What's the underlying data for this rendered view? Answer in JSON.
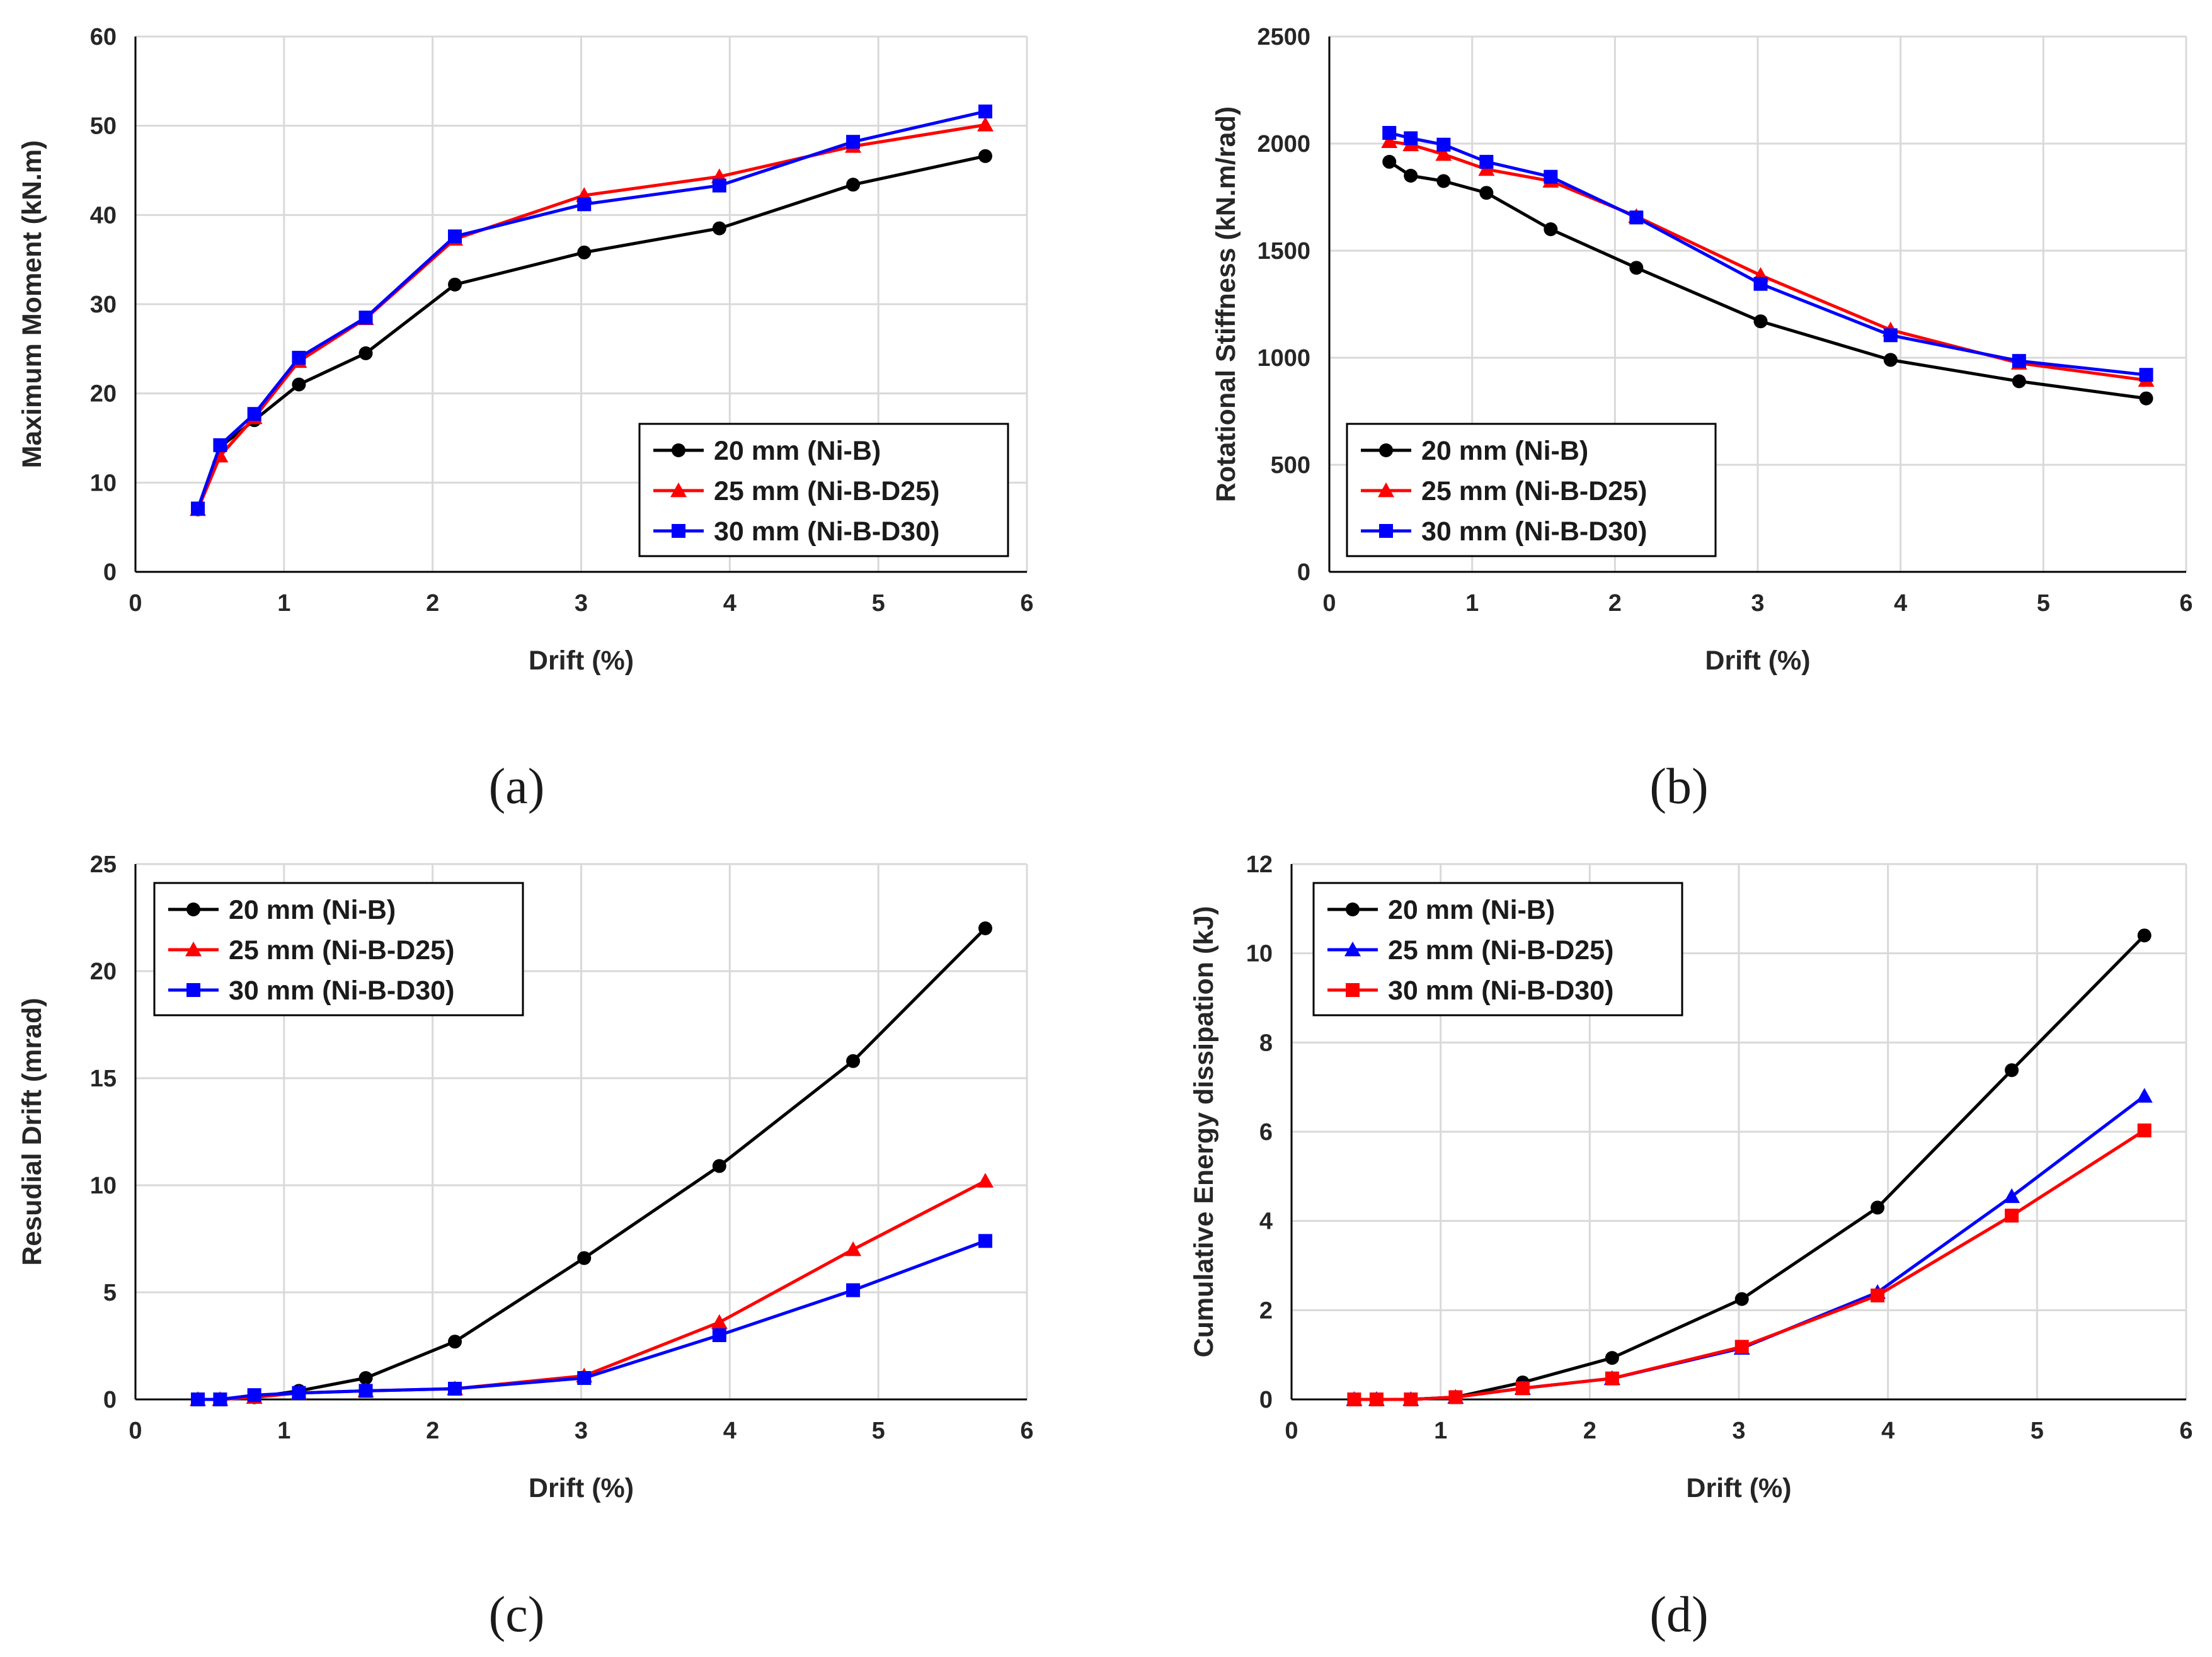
{
  "chart_data": [
    {
      "type": "line",
      "panel_label": "(a)",
      "xlabel": "Drift (%)",
      "ylabel": "Maximum Moment (kN.m)",
      "xlim": [
        0,
        6
      ],
      "ylim": [
        0,
        60
      ],
      "xticks": [
        0,
        1,
        2,
        3,
        4,
        5,
        6
      ],
      "yticks": [
        0,
        10,
        20,
        30,
        40,
        50,
        60
      ],
      "grid": true,
      "legend_position": "bottom-right",
      "series": [
        {
          "name": "20 mm (Ni-B)",
          "color": "#000000",
          "marker": "circle",
          "x": [
            0.42,
            0.57,
            0.8,
            1.1,
            1.55,
            2.15,
            3.02,
            3.93,
            4.83,
            5.72
          ],
          "y": [
            7.0,
            14.0,
            17.0,
            21.0,
            24.5,
            32.2,
            35.8,
            38.5,
            43.4,
            46.6
          ]
        },
        {
          "name": "25 mm (Ni-B-D25)",
          "color": "#ff0000",
          "marker": "triangle",
          "x": [
            0.42,
            0.57,
            0.8,
            1.1,
            1.55,
            2.15,
            3.02,
            3.93,
            4.83,
            5.72
          ],
          "y": [
            7.0,
            13.0,
            17.3,
            23.6,
            28.4,
            37.3,
            42.2,
            44.3,
            47.7,
            50.1
          ]
        },
        {
          "name": "30 mm (Ni-B-D30)",
          "color": "#0000ff",
          "marker": "square",
          "x": [
            0.42,
            0.57,
            0.8,
            1.1,
            1.55,
            2.15,
            3.02,
            3.93,
            4.83,
            5.72
          ],
          "y": [
            7.1,
            14.2,
            17.7,
            24.0,
            28.5,
            37.6,
            41.2,
            43.3,
            48.2,
            51.6
          ]
        }
      ]
    },
    {
      "type": "line",
      "panel_label": "(b)",
      "xlabel": "Drift (%)",
      "ylabel": "Rotational Stiffness (kN.m/rad)",
      "xlim": [
        0,
        6
      ],
      "ylim": [
        0,
        2500
      ],
      "xticks": [
        0,
        1,
        2,
        3,
        4,
        5,
        6
      ],
      "yticks": [
        0,
        500,
        1000,
        1500,
        2000,
        2500
      ],
      "grid": true,
      "legend_position": "bottom-left",
      "series": [
        {
          "name": "20 mm (Ni-B)",
          "color": "#000000",
          "marker": "circle",
          "x": [
            0.42,
            0.57,
            0.8,
            1.1,
            1.55,
            2.15,
            3.02,
            3.93,
            4.83,
            5.72
          ],
          "y": [
            1915,
            1850,
            1825,
            1770,
            1600,
            1420,
            1170,
            990,
            890,
            810
          ]
        },
        {
          "name": "25 mm (Ni-B-D25)",
          "color": "#ff0000",
          "marker": "triangle",
          "x": [
            0.42,
            0.57,
            0.8,
            1.1,
            1.55,
            2.15,
            3.02,
            3.93,
            4.83,
            5.72
          ],
          "y": [
            2010,
            1995,
            1950,
            1880,
            1825,
            1660,
            1385,
            1130,
            975,
            895
          ]
        },
        {
          "name": "30 mm (Ni-B-D30)",
          "color": "#0000ff",
          "marker": "square",
          "x": [
            0.42,
            0.57,
            0.8,
            1.1,
            1.55,
            2.15,
            3.02,
            3.93,
            4.83,
            5.72
          ],
          "y": [
            2050,
            2025,
            1995,
            1915,
            1845,
            1655,
            1345,
            1105,
            985,
            920
          ]
        }
      ]
    },
    {
      "type": "line",
      "panel_label": "(c)",
      "xlabel": "Drift (%)",
      "ylabel": "Resudial Drift (mrad)",
      "xlim": [
        0,
        6
      ],
      "ylim": [
        0,
        25
      ],
      "xticks": [
        0,
        1,
        2,
        3,
        4,
        5,
        6
      ],
      "yticks": [
        0,
        5,
        10,
        15,
        20,
        25
      ],
      "grid": true,
      "legend_position": "top-left",
      "series": [
        {
          "name": "20 mm (Ni-B)",
          "color": "#000000",
          "marker": "circle",
          "x": [
            0.42,
            0.57,
            0.8,
            1.1,
            1.55,
            2.15,
            3.02,
            3.93,
            4.83,
            5.72
          ],
          "y": [
            0.0,
            0.0,
            0.1,
            0.4,
            1.0,
            2.7,
            6.6,
            10.9,
            15.8,
            22.0
          ]
        },
        {
          "name": "25 mm (Ni-B-D25)",
          "color": "#ff0000",
          "marker": "triangle",
          "x": [
            0.42,
            0.57,
            0.8,
            1.1,
            1.55,
            2.15,
            3.02,
            3.93,
            4.83,
            5.72
          ],
          "y": [
            0.0,
            0.0,
            0.1,
            0.3,
            0.4,
            0.5,
            1.1,
            3.6,
            7.0,
            10.2
          ]
        },
        {
          "name": "30 mm (Ni-B-D30)",
          "color": "#0000ff",
          "marker": "square",
          "x": [
            0.42,
            0.57,
            0.8,
            1.1,
            1.55,
            2.15,
            3.02,
            3.93,
            4.83,
            5.72
          ],
          "y": [
            0.0,
            0.0,
            0.2,
            0.3,
            0.4,
            0.5,
            1.0,
            3.0,
            5.1,
            7.4
          ]
        }
      ]
    },
    {
      "type": "line",
      "panel_label": "(d)",
      "xlabel": "Drift (%)",
      "ylabel": "Cumulative Energy dissipation (kJ)",
      "xlim": [
        0,
        6
      ],
      "ylim": [
        0,
        12
      ],
      "xticks": [
        0,
        1,
        2,
        3,
        4,
        5,
        6
      ],
      "yticks": [
        0,
        2,
        4,
        6,
        8,
        10,
        12
      ],
      "grid": true,
      "legend_position": "top-left",
      "series": [
        {
          "name": "20 mm (Ni-B)",
          "color": "#000000",
          "marker": "circle",
          "x": [
            0.42,
            0.57,
            0.8,
            1.1,
            1.55,
            2.15,
            3.02,
            3.93,
            4.83,
            5.72
          ],
          "y": [
            0.0,
            0.0,
            0.0,
            0.05,
            0.38,
            0.93,
            2.25,
            4.3,
            7.38,
            10.4
          ]
        },
        {
          "name": "25 mm (Ni-B-D25)",
          "color": "#0000ff",
          "marker": "triangle",
          "x": [
            0.42,
            0.57,
            0.8,
            1.1,
            1.55,
            2.15,
            3.02,
            3.93,
            4.83,
            5.72
          ],
          "y": [
            0.0,
            0.0,
            0.0,
            0.05,
            0.25,
            0.47,
            1.15,
            2.4,
            4.55,
            6.8
          ]
        },
        {
          "name": "30 mm (Ni-B-D30)",
          "color": "#ff0000",
          "marker": "square",
          "x": [
            0.42,
            0.57,
            0.8,
            1.1,
            1.55,
            2.15,
            3.02,
            3.93,
            4.83,
            5.72
          ],
          "y": [
            0.0,
            0.0,
            0.0,
            0.05,
            0.25,
            0.47,
            1.18,
            2.33,
            4.12,
            6.03
          ]
        }
      ]
    }
  ]
}
